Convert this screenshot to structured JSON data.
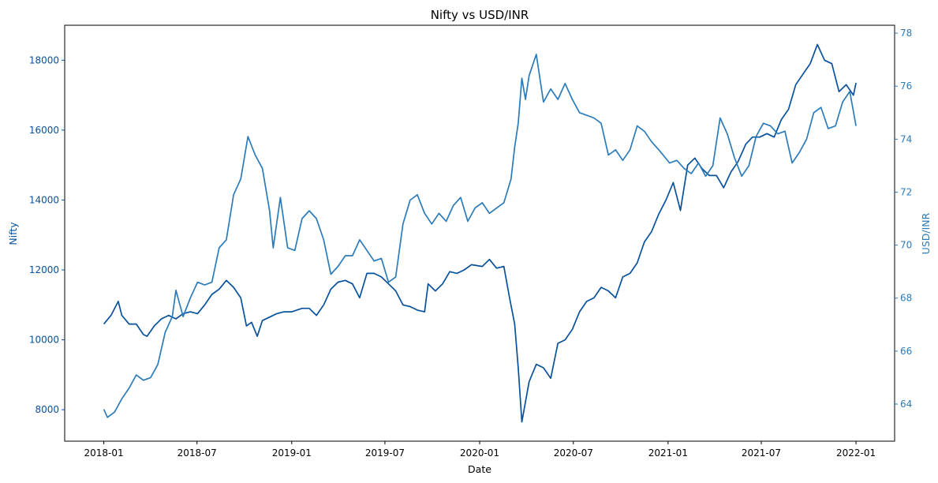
{
  "chart_data": {
    "type": "line",
    "title": "Nifty vs USD/INR",
    "xlabel": "Date",
    "ylabel_left": "Nifty",
    "ylabel_right": "USD/INR",
    "grid": false,
    "legend": "none",
    "x_ticks": [
      "2018-01",
      "2018-07",
      "2019-01",
      "2019-07",
      "2020-01",
      "2020-07",
      "2021-01",
      "2021-07",
      "2022-01"
    ],
    "y_left_ticks": [
      8000,
      10000,
      12000,
      14000,
      16000,
      18000
    ],
    "y_right_ticks": [
      64,
      66,
      68,
      70,
      72,
      74,
      76,
      78
    ],
    "y_left_range": [
      7100,
      19000
    ],
    "y_right_range": [
      62.6,
      78.3
    ],
    "colors": {
      "nifty": "#08519c",
      "usdinr": "#2b7bba"
    },
    "series": [
      {
        "name": "Nifty",
        "axis": "left",
        "points": [
          [
            "2018-01-01",
            10450
          ],
          [
            "2018-01-15",
            10700
          ],
          [
            "2018-01-29",
            11100
          ],
          [
            "2018-02-05",
            10700
          ],
          [
            "2018-02-19",
            10450
          ],
          [
            "2018-03-05",
            10450
          ],
          [
            "2018-03-19",
            10150
          ],
          [
            "2018-03-26",
            10100
          ],
          [
            "2018-04-09",
            10400
          ],
          [
            "2018-04-23",
            10600
          ],
          [
            "2018-05-07",
            10700
          ],
          [
            "2018-05-21",
            10600
          ],
          [
            "2018-06-04",
            10750
          ],
          [
            "2018-06-18",
            10800
          ],
          [
            "2018-07-02",
            10750
          ],
          [
            "2018-07-16",
            11000
          ],
          [
            "2018-07-30",
            11300
          ],
          [
            "2018-08-13",
            11450
          ],
          [
            "2018-08-27",
            11700
          ],
          [
            "2018-09-10",
            11500
          ],
          [
            "2018-09-24",
            11200
          ],
          [
            "2018-10-05",
            10400
          ],
          [
            "2018-10-15",
            10500
          ],
          [
            "2018-10-26",
            10100
          ],
          [
            "2018-11-05",
            10550
          ],
          [
            "2018-11-19",
            10650
          ],
          [
            "2018-12-03",
            10750
          ],
          [
            "2018-12-17",
            10800
          ],
          [
            "2019-01-01",
            10800
          ],
          [
            "2019-01-21",
            10900
          ],
          [
            "2019-02-04",
            10900
          ],
          [
            "2019-02-18",
            10700
          ],
          [
            "2019-03-04",
            11000
          ],
          [
            "2019-03-18",
            11450
          ],
          [
            "2019-04-01",
            11650
          ],
          [
            "2019-04-15",
            11700
          ],
          [
            "2019-04-29",
            11600
          ],
          [
            "2019-05-13",
            11200
          ],
          [
            "2019-05-27",
            11900
          ],
          [
            "2019-06-10",
            11900
          ],
          [
            "2019-06-24",
            11800
          ],
          [
            "2019-07-08",
            11600
          ],
          [
            "2019-07-22",
            11400
          ],
          [
            "2019-08-05",
            11000
          ],
          [
            "2019-08-19",
            10950
          ],
          [
            "2019-09-02",
            10850
          ],
          [
            "2019-09-16",
            10800
          ],
          [
            "2019-09-23",
            11600
          ],
          [
            "2019-10-07",
            11400
          ],
          [
            "2019-10-21",
            11600
          ],
          [
            "2019-11-04",
            11950
          ],
          [
            "2019-11-18",
            11900
          ],
          [
            "2019-12-02",
            12000
          ],
          [
            "2019-12-16",
            12150
          ],
          [
            "2020-01-06",
            12100
          ],
          [
            "2020-01-20",
            12300
          ],
          [
            "2020-02-03",
            12050
          ],
          [
            "2020-02-17",
            12100
          ],
          [
            "2020-02-28",
            11200
          ],
          [
            "2020-03-09",
            10450
          ],
          [
            "2020-03-16",
            9200
          ],
          [
            "2020-03-23",
            7650
          ],
          [
            "2020-04-06",
            8800
          ],
          [
            "2020-04-20",
            9300
          ],
          [
            "2020-05-04",
            9200
          ],
          [
            "2020-05-18",
            8900
          ],
          [
            "2020-06-01",
            9900
          ],
          [
            "2020-06-15",
            10000
          ],
          [
            "2020-06-29",
            10300
          ],
          [
            "2020-07-13",
            10800
          ],
          [
            "2020-07-27",
            11100
          ],
          [
            "2020-08-10",
            11200
          ],
          [
            "2020-08-24",
            11500
          ],
          [
            "2020-09-07",
            11400
          ],
          [
            "2020-09-21",
            11200
          ],
          [
            "2020-10-05",
            11800
          ],
          [
            "2020-10-19",
            11900
          ],
          [
            "2020-11-02",
            12200
          ],
          [
            "2020-11-16",
            12800
          ],
          [
            "2020-11-30",
            13100
          ],
          [
            "2020-12-14",
            13600
          ],
          [
            "2020-12-28",
            14000
          ],
          [
            "2021-01-11",
            14500
          ],
          [
            "2021-01-25",
            13700
          ],
          [
            "2021-02-08",
            15000
          ],
          [
            "2021-02-22",
            15200
          ],
          [
            "2021-03-08",
            14900
          ],
          [
            "2021-03-22",
            14700
          ],
          [
            "2021-04-05",
            14700
          ],
          [
            "2021-04-19",
            14350
          ],
          [
            "2021-05-03",
            14800
          ],
          [
            "2021-05-17",
            15100
          ],
          [
            "2021-06-01",
            15600
          ],
          [
            "2021-06-14",
            15800
          ],
          [
            "2021-06-28",
            15800
          ],
          [
            "2021-07-12",
            15900
          ],
          [
            "2021-07-26",
            15800
          ],
          [
            "2021-08-09",
            16300
          ],
          [
            "2021-08-23",
            16600
          ],
          [
            "2021-09-06",
            17300
          ],
          [
            "2021-09-20",
            17600
          ],
          [
            "2021-10-04",
            17900
          ],
          [
            "2021-10-18",
            18450
          ],
          [
            "2021-11-01",
            18000
          ],
          [
            "2021-11-15",
            17900
          ],
          [
            "2021-11-29",
            17100
          ],
          [
            "2021-12-13",
            17300
          ],
          [
            "2021-12-27",
            17000
          ],
          [
            "2022-01-01",
            17350
          ]
        ]
      },
      {
        "name": "USD/INR",
        "axis": "right",
        "points": [
          [
            "2018-01-01",
            63.8
          ],
          [
            "2018-01-08",
            63.5
          ],
          [
            "2018-01-22",
            63.7
          ],
          [
            "2018-02-05",
            64.2
          ],
          [
            "2018-02-19",
            64.6
          ],
          [
            "2018-03-05",
            65.1
          ],
          [
            "2018-03-19",
            64.9
          ],
          [
            "2018-04-02",
            65.0
          ],
          [
            "2018-04-16",
            65.5
          ],
          [
            "2018-04-30",
            66.7
          ],
          [
            "2018-05-14",
            67.3
          ],
          [
            "2018-05-21",
            68.3
          ],
          [
            "2018-06-04",
            67.3
          ],
          [
            "2018-06-18",
            68.0
          ],
          [
            "2018-07-02",
            68.6
          ],
          [
            "2018-07-16",
            68.5
          ],
          [
            "2018-07-30",
            68.6
          ],
          [
            "2018-08-13",
            69.9
          ],
          [
            "2018-08-27",
            70.2
          ],
          [
            "2018-09-10",
            71.9
          ],
          [
            "2018-09-24",
            72.5
          ],
          [
            "2018-10-08",
            74.1
          ],
          [
            "2018-10-22",
            73.4
          ],
          [
            "2018-11-05",
            72.9
          ],
          [
            "2018-11-19",
            71.3
          ],
          [
            "2018-11-26",
            69.9
          ],
          [
            "2018-12-10",
            71.8
          ],
          [
            "2018-12-24",
            69.9
          ],
          [
            "2019-01-07",
            69.8
          ],
          [
            "2019-01-21",
            71.0
          ],
          [
            "2019-02-04",
            71.3
          ],
          [
            "2019-02-18",
            71.0
          ],
          [
            "2019-03-04",
            70.2
          ],
          [
            "2019-03-18",
            68.9
          ],
          [
            "2019-04-01",
            69.2
          ],
          [
            "2019-04-15",
            69.6
          ],
          [
            "2019-04-29",
            69.6
          ],
          [
            "2019-05-13",
            70.2
          ],
          [
            "2019-05-27",
            69.8
          ],
          [
            "2019-06-10",
            69.4
          ],
          [
            "2019-06-24",
            69.5
          ],
          [
            "2019-07-08",
            68.6
          ],
          [
            "2019-07-22",
            68.8
          ],
          [
            "2019-08-05",
            70.8
          ],
          [
            "2019-08-19",
            71.7
          ],
          [
            "2019-09-02",
            71.9
          ],
          [
            "2019-09-16",
            71.2
          ],
          [
            "2019-09-30",
            70.8
          ],
          [
            "2019-10-14",
            71.2
          ],
          [
            "2019-10-28",
            70.9
          ],
          [
            "2019-11-11",
            71.5
          ],
          [
            "2019-11-25",
            71.8
          ],
          [
            "2019-12-09",
            70.9
          ],
          [
            "2019-12-23",
            71.4
          ],
          [
            "2020-01-06",
            71.6
          ],
          [
            "2020-01-20",
            71.2
          ],
          [
            "2020-02-03",
            71.4
          ],
          [
            "2020-02-17",
            71.6
          ],
          [
            "2020-03-02",
            72.5
          ],
          [
            "2020-03-09",
            73.7
          ],
          [
            "2020-03-16",
            74.6
          ],
          [
            "2020-03-23",
            76.3
          ],
          [
            "2020-03-30",
            75.5
          ],
          [
            "2020-04-06",
            76.4
          ],
          [
            "2020-04-20",
            77.2
          ],
          [
            "2020-05-04",
            75.4
          ],
          [
            "2020-05-18",
            75.9
          ],
          [
            "2020-06-01",
            75.5
          ],
          [
            "2020-06-15",
            76.1
          ],
          [
            "2020-06-29",
            75.5
          ],
          [
            "2020-07-13",
            75.0
          ],
          [
            "2020-07-27",
            74.9
          ],
          [
            "2020-08-10",
            74.8
          ],
          [
            "2020-08-24",
            74.6
          ],
          [
            "2020-09-07",
            73.4
          ],
          [
            "2020-09-21",
            73.6
          ],
          [
            "2020-10-05",
            73.2
          ],
          [
            "2020-10-19",
            73.6
          ],
          [
            "2020-11-02",
            74.5
          ],
          [
            "2020-11-16",
            74.3
          ],
          [
            "2020-11-30",
            73.9
          ],
          [
            "2020-12-14",
            73.6
          ],
          [
            "2021-01-04",
            73.1
          ],
          [
            "2021-01-18",
            73.2
          ],
          [
            "2021-02-01",
            72.9
          ],
          [
            "2021-02-15",
            72.7
          ],
          [
            "2021-03-01",
            73.1
          ],
          [
            "2021-03-15",
            72.6
          ],
          [
            "2021-03-29",
            73.0
          ],
          [
            "2021-04-12",
            74.8
          ],
          [
            "2021-04-26",
            74.2
          ],
          [
            "2021-05-10",
            73.3
          ],
          [
            "2021-05-24",
            72.6
          ],
          [
            "2021-06-07",
            73.0
          ],
          [
            "2021-06-21",
            74.1
          ],
          [
            "2021-07-05",
            74.6
          ],
          [
            "2021-07-19",
            74.5
          ],
          [
            "2021-08-02",
            74.2
          ],
          [
            "2021-08-16",
            74.3
          ],
          [
            "2021-08-30",
            73.1
          ],
          [
            "2021-09-13",
            73.5
          ],
          [
            "2021-09-27",
            74.0
          ],
          [
            "2021-10-11",
            75.0
          ],
          [
            "2021-10-25",
            75.2
          ],
          [
            "2021-11-08",
            74.4
          ],
          [
            "2021-11-22",
            74.5
          ],
          [
            "2021-12-06",
            75.4
          ],
          [
            "2021-12-20",
            75.8
          ],
          [
            "2022-01-01",
            74.5
          ]
        ]
      }
    ]
  }
}
